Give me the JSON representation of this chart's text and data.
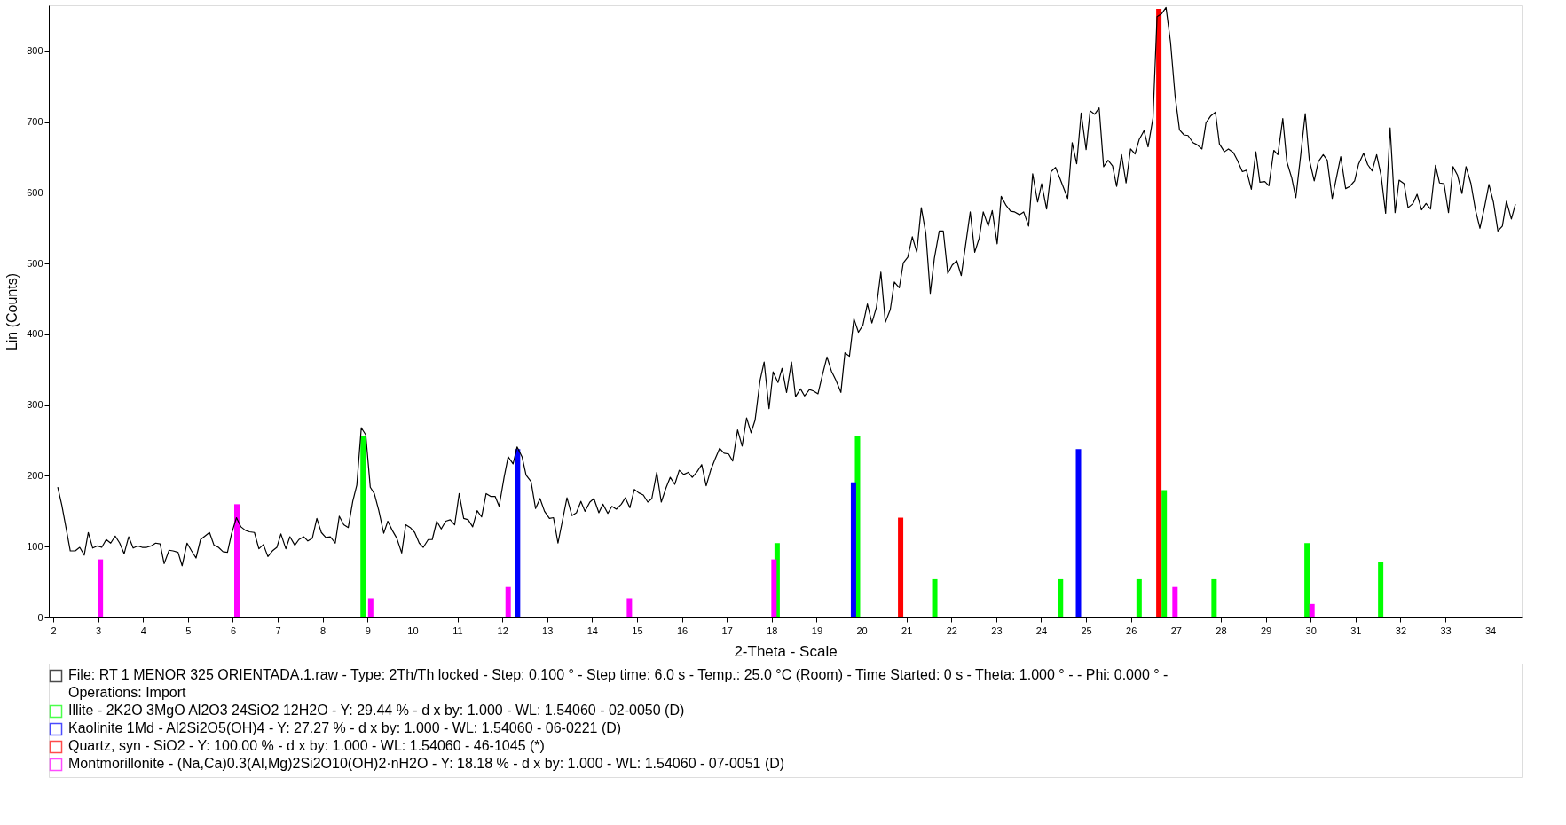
{
  "chart_data": {
    "type": "line",
    "xlabel": "2-Theta - Scale",
    "ylabel": "Lin (Counts)",
    "xlim": [
      2,
      34.6
    ],
    "ylim": [
      0,
      865
    ],
    "xticks": [
      2,
      3,
      4,
      5,
      6,
      7,
      8,
      9,
      10,
      11,
      12,
      13,
      14,
      15,
      16,
      17,
      18,
      19,
      20,
      21,
      22,
      23,
      24,
      25,
      26,
      27,
      28,
      29,
      30,
      31,
      32,
      33,
      34
    ],
    "yticks": [
      0,
      100,
      200,
      300,
      400,
      500,
      600,
      700,
      800
    ],
    "grid": false,
    "legend": "bottom",
    "marker": "none",
    "line_style": "solid",
    "series": [
      {
        "name": "File: RT 1 MENOR 325 ORIENTADA.1.raw - Type: 2Th/Th locked - Step: 0.100 ° - Step time: 6.0 s - Temp.: 25.0 °C (Room) - Time Started: 0 s - Theta: 1.000 ° - - Phi: 0.000 ° - Operations: Import",
        "type": "line",
        "color": "#000000",
        "x": [
          2.1,
          2.19,
          2.29,
          2.38,
          2.49,
          2.59,
          2.69,
          2.78,
          2.88,
          2.98,
          3.08,
          3.18,
          3.28,
          3.38,
          3.48,
          3.58,
          3.68,
          3.78,
          3.88,
          3.98,
          4.08,
          4.18,
          4.28,
          4.38,
          4.47,
          4.58,
          4.67,
          4.78,
          4.87,
          4.98,
          5.08,
          5.18,
          5.28,
          5.38,
          5.48,
          5.58,
          5.68,
          5.78,
          5.88,
          5.97,
          6.08,
          6.18,
          6.28,
          6.37,
          6.48,
          6.58,
          6.68,
          6.78,
          6.88,
          6.98,
          7.07,
          7.18,
          7.27,
          7.38,
          7.47,
          7.58,
          7.67,
          7.77,
          7.87,
          7.97,
          8.07,
          8.17,
          8.28,
          8.37,
          8.47,
          8.57,
          8.67,
          8.76,
          8.86,
          8.96,
          9.06,
          9.15,
          9.25,
          9.36,
          9.45,
          9.55,
          9.65,
          9.76,
          9.85,
          9.95,
          10.05,
          10.15,
          10.24,
          10.35,
          10.44,
          10.54,
          10.64,
          10.74,
          10.84,
          10.94,
          11.04,
          11.14,
          11.24,
          11.34,
          11.44,
          11.54,
          11.64,
          11.74,
          11.84,
          11.93,
          12.04,
          12.13,
          12.24,
          12.33,
          12.44,
          12.53,
          12.64,
          12.74,
          12.84,
          12.94,
          13.05,
          13.14,
          13.24,
          13.44,
          13.55,
          13.65,
          13.75,
          13.84,
          13.95,
          14.04,
          14.15,
          14.24,
          14.35,
          14.44,
          14.54,
          14.65,
          14.74,
          14.84,
          14.94,
          15.04,
          15.14,
          15.24,
          15.33,
          15.44,
          15.54,
          15.64,
          15.74,
          15.84,
          15.94,
          16.04,
          16.14,
          16.23,
          16.34,
          16.44,
          16.54,
          16.64,
          16.74,
          16.84,
          16.94,
          17.04,
          17.13,
          17.24,
          17.34,
          17.44,
          17.54,
          17.63,
          17.74,
          17.83,
          17.94,
          18.03,
          18.14,
          18.23,
          18.33,
          18.44,
          18.53,
          18.64,
          18.73,
          18.84,
          18.93,
          19.03,
          19.13,
          19.23,
          19.33,
          19.43,
          19.54,
          19.63,
          19.73,
          19.83,
          19.93,
          20.03,
          20.13,
          20.23,
          20.33,
          20.43,
          20.53,
          20.64,
          20.73,
          20.84,
          20.93,
          21.03,
          21.13,
          21.23,
          21.33,
          21.43,
          21.53,
          21.62,
          21.73,
          21.82,
          21.92,
          22.02,
          22.12,
          22.22,
          22.32,
          22.42,
          22.52,
          22.62,
          22.71,
          22.82,
          22.91,
          23.02,
          23.11,
          23.22,
          23.32,
          23.41,
          23.52,
          23.61,
          23.72,
          23.81,
          23.92,
          24.01,
          24.12,
          24.22,
          24.32,
          24.42,
          24.59,
          24.69,
          24.79,
          24.89,
          25.0,
          25.09,
          25.19,
          25.29,
          25.39,
          25.49,
          25.59,
          25.68,
          25.79,
          25.89,
          25.99,
          26.09,
          26.18,
          26.29,
          26.38,
          26.49,
          26.58,
          26.68,
          26.78,
          26.88,
          26.98,
          27.08,
          27.18,
          27.27,
          27.38,
          27.47,
          27.58,
          27.67,
          27.78,
          27.88,
          27.97,
          28.08,
          28.17,
          28.28,
          28.37,
          28.48,
          28.57,
          28.68,
          28.78,
          28.87,
          28.98,
          29.07,
          29.18,
          29.27,
          29.38,
          29.47,
          29.58,
          29.67,
          29.78,
          29.88,
          29.97,
          30.08,
          30.17,
          30.28,
          30.37,
          30.48,
          30.57,
          30.67,
          30.78,
          30.87,
          30.98,
          31.07,
          31.18,
          31.27,
          31.37,
          31.47,
          31.57,
          31.67,
          31.77,
          31.88,
          31.97,
          32.08,
          32.17,
          32.28,
          32.37,
          32.47,
          32.57,
          32.67,
          32.78,
          32.87,
          32.97,
          33.07,
          33.17,
          33.27,
          33.37,
          33.46,
          33.57,
          33.67,
          33.77,
          33.87,
          33.97,
          34.07,
          34.17,
          34.27,
          34.36,
          34.47,
          34.56
        ],
        "values": [
          184,
          159,
          125,
          94,
          94,
          99,
          88,
          120,
          98,
          101,
          99,
          110,
          105,
          115,
          105,
          90,
          114,
          98,
          101,
          99,
          99,
          101,
          105,
          104,
          76,
          95,
          94,
          92,
          73,
          105,
          94,
          84,
          110,
          115,
          120,
          102,
          99,
          93,
          92,
          118,
          141,
          128,
          123,
          121,
          120,
          97,
          103,
          86,
          94,
          99,
          118,
          97,
          114,
          102,
          110,
          114,
          108,
          112,
          140,
          120,
          113,
          114,
          105,
          143,
          131,
          127,
          164,
          187,
          268,
          258,
          184,
          175,
          151,
          119,
          136,
          123,
          112,
          91,
          131,
          127,
          120,
          105,
          99,
          110,
          110,
          136,
          125,
          136,
          138,
          131,
          175,
          140,
          138,
          128,
          151,
          142,
          175,
          171,
          171,
          157,
          198,
          227,
          217,
          241,
          227,
          201,
          192,
          154,
          168,
          150,
          140,
          141,
          105,
          169,
          144,
          148,
          164,
          150,
          163,
          168,
          148,
          160,
          147,
          157,
          153,
          160,
          169,
          155,
          181,
          176,
          173,
          163,
          168,
          205,
          163,
          182,
          198,
          188,
          208,
          202,
          205,
          198,
          206,
          216,
          186,
          208,
          224,
          239,
          232,
          231,
          221,
          265,
          242,
          282,
          261,
          279,
          335,
          361,
          295,
          347,
          332,
          352,
          318,
          361,
          312,
          323,
          313,
          322,
          320,
          316,
          343,
          368,
          348,
          335,
          318,
          374,
          369,
          422,
          403,
          413,
          443,
          416,
          438,
          488,
          417,
          435,
          474,
          466,
          501,
          509,
          538,
          516,
          579,
          543,
          458,
          507,
          546,
          546,
          486,
          498,
          504,
          483,
          528,
          573,
          516,
          536,
          573,
          553,
          575,
          528,
          595,
          582,
          574,
          573,
          569,
          573,
          553,
          627,
          587,
          613,
          577,
          630,
          636,
          620,
          592,
          671,
          641,
          713,
          661,
          716,
          711,
          720,
          637,
          646,
          638,
          609,
          654,
          614,
          662,
          655,
          675,
          688,
          665,
          706,
          849,
          853,
          862,
          813,
          738,
          689,
          682,
          681,
          671,
          668,
          662,
          699,
          709,
          714,
          669,
          658,
          662,
          657,
          646,
          630,
          632,
          605,
          658,
          615,
          616,
          610,
          660,
          654,
          705,
          644,
          621,
          593,
          654,
          712,
          647,
          617,
          644,
          654,
          646,
          592,
          620,
          651,
          606,
          609,
          617,
          641,
          656,
          640,
          631,
          654,
          624,
          571,
          692,
          572,
          618,
          613,
          579,
          585,
          598,
          576,
          585,
          577,
          639,
          614,
          613,
          572,
          637,
          625,
          599,
          637,
          613,
          576,
          550,
          579,
          612,
          587,
          546,
          553,
          588,
          563,
          584
        ]
      },
      {
        "name": "Illite - 2K2O 3MgO Al2O3 24SiO2 12H2O - Y: 29.44 % - d x by: 1.000 - WL: 1.54060 - 02-0050 (D)",
        "type": "bar",
        "color": "#00ff00",
        "x": [
          8.9,
          18.12,
          19.91,
          21.63,
          24.43,
          26.18,
          26.74,
          27.85,
          29.92,
          31.56
        ],
        "values": [
          257,
          105,
          257,
          54,
          54,
          54,
          180,
          54,
          105,
          79
        ]
      },
      {
        "name": "Kaolinite 1Md - Al2Si2O5(OH)4 - Y: 27.27 % - d x by: 1.000 - WL: 1.54060 - 06-0221 (D)",
        "type": "bar",
        "color": "#0000ff",
        "x": [
          12.34,
          19.82,
          24.83
        ],
        "values": [
          238,
          191,
          238
        ]
      },
      {
        "name": "Quartz, syn - SiO2 - Y: 100.00 % - d x by: 1.000 - WL: 1.54060 - 46-1045 (*)",
        "type": "bar",
        "color": "#ff0000",
        "x": [
          20.87,
          26.62
        ],
        "values": [
          141,
          860
        ]
      },
      {
        "name": "Montmorillonite - (Na,Ca)0.3(Al,Mg)2Si2O10(OH)2·nH2O - Y: 18.18 % - d x by: 1.000 - WL: 1.54060 - 07-0051 (D)",
        "type": "bar",
        "color": "#ff00ff",
        "x": [
          3.05,
          6.09,
          9.07,
          12.13,
          14.83,
          18.05,
          26.98,
          30.03
        ],
        "values": [
          82,
          160,
          27,
          43,
          27,
          82,
          43,
          19
        ]
      }
    ]
  }
}
